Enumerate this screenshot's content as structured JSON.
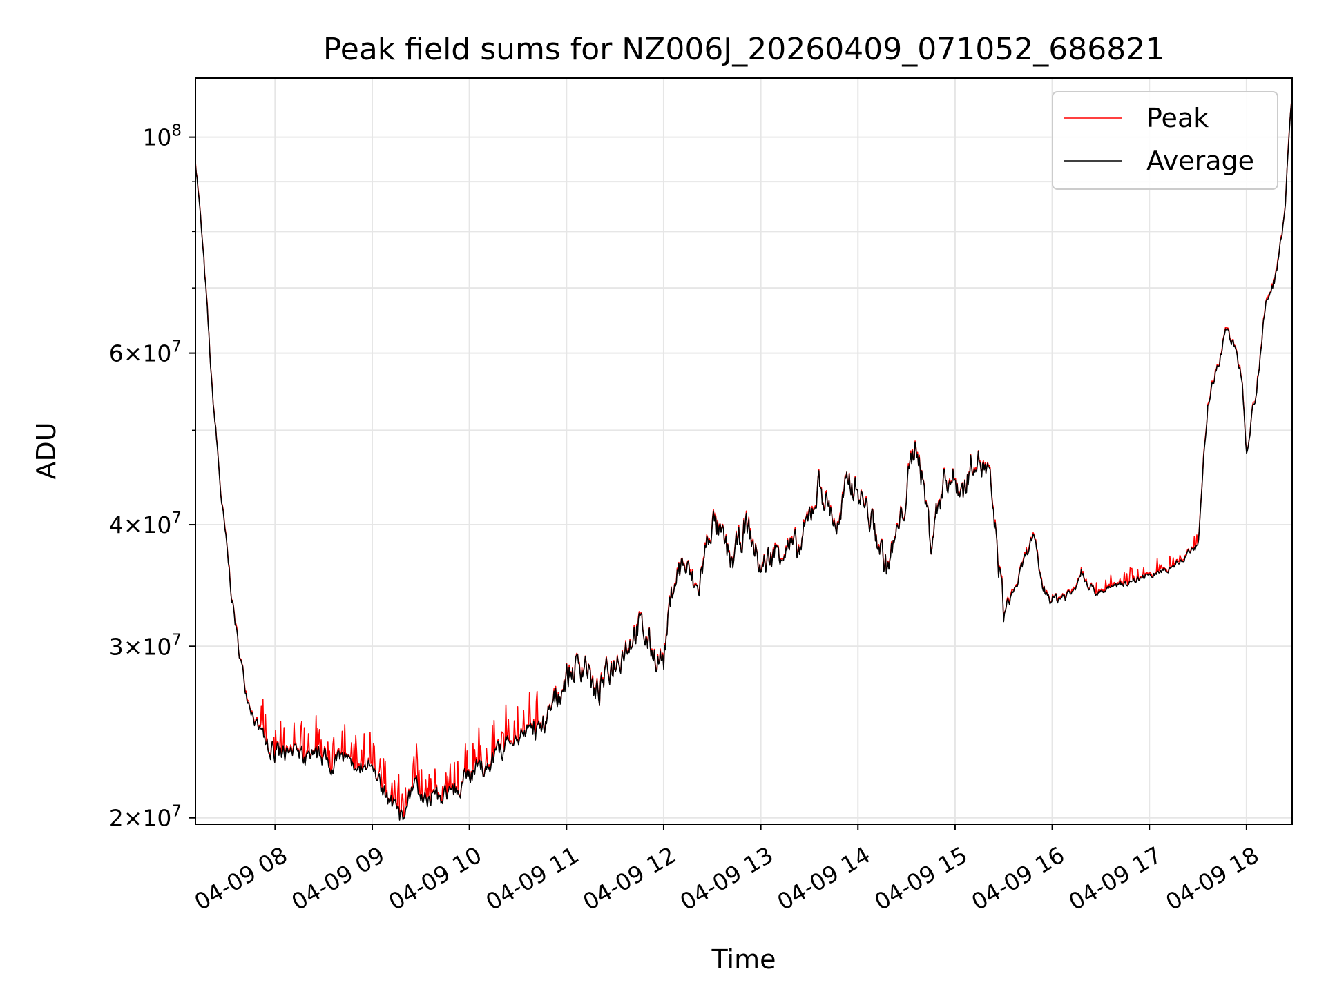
{
  "chart_data": {
    "type": "line",
    "title": "Peak field sums for NZ006J_20260409_071052_686821",
    "xlabel": "Time",
    "ylabel": "ADU",
    "yscale": "log",
    "grid": true,
    "legend_position": "top-right",
    "xlim_hours": [
      7.18,
      18.47
    ],
    "ylim": [
      19700000,
      115000000
    ],
    "x_ticks": [
      {
        "hour": 8,
        "label": "04-09 08"
      },
      {
        "hour": 9,
        "label": "04-09 09"
      },
      {
        "hour": 10,
        "label": "04-09 10"
      },
      {
        "hour": 11,
        "label": "04-09 11"
      },
      {
        "hour": 12,
        "label": "04-09 12"
      },
      {
        "hour": 13,
        "label": "04-09 13"
      },
      {
        "hour": 14,
        "label": "04-09 14"
      },
      {
        "hour": 15,
        "label": "04-09 15"
      },
      {
        "hour": 16,
        "label": "04-09 16"
      },
      {
        "hour": 17,
        "label": "04-09 17"
      },
      {
        "hour": 18,
        "label": "04-09 18"
      }
    ],
    "y_ticks": [
      {
        "value": 20000000,
        "mant": "2",
        "exp": "7"
      },
      {
        "value": 30000000,
        "mant": "3",
        "exp": "7"
      },
      {
        "value": 40000000,
        "mant": "4",
        "exp": "7"
      },
      {
        "value": 60000000,
        "mant": "6",
        "exp": "7"
      },
      {
        "value": 100000000,
        "mant": "",
        "exp": "8"
      }
    ],
    "y_minor_ticks": [
      50000000,
      70000000,
      80000000,
      90000000
    ],
    "x_unit": "hour of 2026-04-09",
    "y_unit": "ADU (millions)",
    "average_keyframes": [
      [
        7.18,
        95
      ],
      [
        7.25,
        78
      ],
      [
        7.35,
        55
      ],
      [
        7.45,
        42
      ],
      [
        7.55,
        34
      ],
      [
        7.62,
        30
      ],
      [
        7.7,
        27
      ],
      [
        7.8,
        25
      ],
      [
        7.9,
        24
      ],
      [
        8.0,
        23.3
      ],
      [
        8.5,
        23.0
      ],
      [
        8.8,
        22.8
      ],
      [
        9.0,
        22.3
      ],
      [
        9.1,
        21.5
      ],
      [
        9.2,
        20.6
      ],
      [
        9.3,
        20.0
      ],
      [
        9.45,
        21.5
      ],
      [
        9.6,
        21.0
      ],
      [
        9.8,
        21.2
      ],
      [
        10.0,
        22.2
      ],
      [
        10.2,
        22.8
      ],
      [
        10.4,
        23.8
      ],
      [
        10.6,
        24.5
      ],
      [
        10.8,
        25.2
      ],
      [
        11.0,
        28.0
      ],
      [
        11.1,
        28.5
      ],
      [
        11.2,
        29.0
      ],
      [
        11.3,
        26.5
      ],
      [
        11.45,
        28.5
      ],
      [
        11.6,
        30.0
      ],
      [
        11.75,
        31.5
      ],
      [
        11.9,
        29.5
      ],
      [
        12.0,
        29.0
      ],
      [
        12.1,
        35.0
      ],
      [
        12.2,
        36.5
      ],
      [
        12.35,
        34.0
      ],
      [
        12.5,
        40.5
      ],
      [
        12.7,
        36.5
      ],
      [
        12.85,
        40.0
      ],
      [
        13.0,
        36.0
      ],
      [
        13.2,
        38.0
      ],
      [
        13.4,
        37.5
      ],
      [
        13.6,
        44.0
      ],
      [
        13.8,
        39.5
      ],
      [
        13.9,
        44.5
      ],
      [
        14.0,
        43.5
      ],
      [
        14.15,
        40.0
      ],
      [
        14.3,
        36.0
      ],
      [
        14.45,
        40.5
      ],
      [
        14.6,
        49.0
      ],
      [
        14.75,
        38.5
      ],
      [
        14.9,
        45.0
      ],
      [
        15.1,
        43.5
      ],
      [
        15.2,
        47.5
      ],
      [
        15.35,
        44.5
      ],
      [
        15.5,
        32.5
      ],
      [
        15.65,
        35.0
      ],
      [
        15.8,
        39.0
      ],
      [
        15.9,
        34.5
      ],
      [
        16.0,
        33.5
      ],
      [
        16.2,
        34.0
      ],
      [
        16.3,
        36.0
      ],
      [
        16.45,
        34.0
      ],
      [
        16.8,
        35.0
      ],
      [
        17.2,
        36.0
      ],
      [
        17.5,
        38.0
      ],
      [
        17.6,
        53.0
      ],
      [
        17.7,
        58.0
      ],
      [
        17.8,
        64.0
      ],
      [
        17.95,
        57.0
      ],
      [
        18.0,
        48.0
      ],
      [
        18.1,
        55.0
      ],
      [
        18.2,
        67.0
      ],
      [
        18.3,
        72.0
      ],
      [
        18.4,
        85.0
      ],
      [
        18.47,
        112.0
      ]
    ]
  },
  "legend": {
    "items": [
      {
        "label": "Peak",
        "color": "#ff0000"
      },
      {
        "label": "Average",
        "color": "#000000"
      }
    ]
  },
  "colors": {
    "peak": "#ff0000",
    "average": "#000000",
    "grid": "#e6e6e6",
    "legend_border": "#cccccc"
  }
}
